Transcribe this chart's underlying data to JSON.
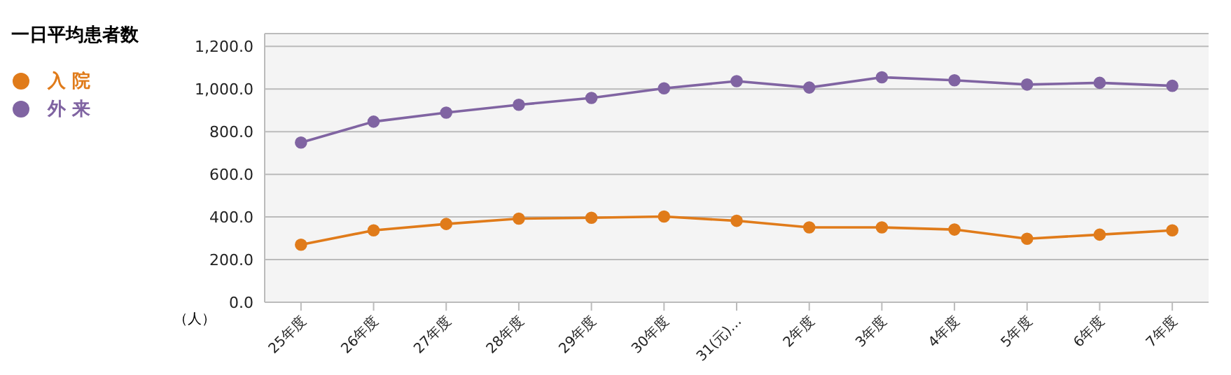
{
  "chart_data": {
    "type": "line",
    "title": "一日平均患者数",
    "ylabel": "（人）",
    "categories": [
      "25年度",
      "26年度",
      "27年度",
      "28年度",
      "29年度",
      "30年度",
      "31(元)…",
      "2年度",
      "3年度",
      "4年度",
      "5年度",
      "6年度",
      "7年度"
    ],
    "series": [
      {
        "name": "入 院",
        "color": "#e07b1a",
        "values": [
          270,
          337,
          367,
          392,
          396,
          402,
          382,
          351,
          351,
          341,
          298,
          317,
          337
        ]
      },
      {
        "name": "外 来",
        "color": "#8064a2",
        "values": [
          749,
          847,
          889,
          926,
          958,
          1003,
          1037,
          1007,
          1055,
          1041,
          1021,
          1029,
          1015
        ]
      }
    ],
    "ylim": [
      0,
      1260
    ],
    "yticks": [
      {
        "value": 0,
        "label": "0.0"
      },
      {
        "value": 200,
        "label": "200.0"
      },
      {
        "value": 400,
        "label": "400.0"
      },
      {
        "value": 600,
        "label": "600.0"
      },
      {
        "value": 800,
        "label": "800.0"
      },
      {
        "value": 1000,
        "label": "1,000.0"
      },
      {
        "value": 1200,
        "label": "1,200.0"
      }
    ],
    "grid": "y",
    "legend": "left",
    "marker": "circle",
    "line_style": "solid"
  }
}
